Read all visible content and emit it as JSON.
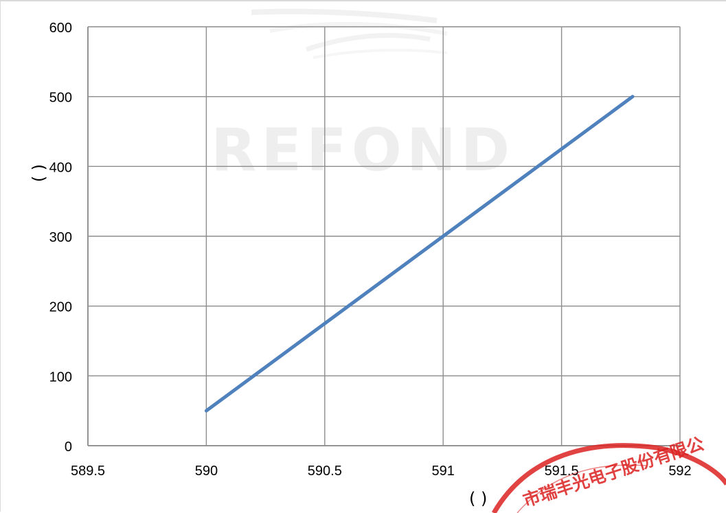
{
  "chart_data": {
    "type": "line",
    "title": "",
    "xlabel": "(        )",
    "ylabel": "(    )",
    "xlim": [
      589.5,
      592
    ],
    "ylim": [
      0,
      600
    ],
    "x_ticks": [
      589.5,
      590,
      590.5,
      591,
      591.5,
      592
    ],
    "x_tick_labels": [
      "589.5",
      "590",
      "590.5",
      "591",
      "591.5",
      "592"
    ],
    "y_ticks": [
      0,
      100,
      200,
      300,
      400,
      500,
      600
    ],
    "y_tick_labels": [
      "0",
      "100",
      "200",
      "300",
      "400",
      "500",
      "600"
    ],
    "grid": true,
    "series": [
      {
        "x": [
          590,
          591.8
        ],
        "y": [
          50,
          500
        ],
        "color": "#4f81bd"
      }
    ]
  },
  "watermark": {
    "text": "REFOND"
  },
  "seal": {
    "text": "市瑞丰光电子股份有限公",
    "color": "#dc2323"
  },
  "colors": {
    "grid": "#8c8c8c",
    "axis": "#8c8c8c",
    "line": "#4f81bd"
  }
}
